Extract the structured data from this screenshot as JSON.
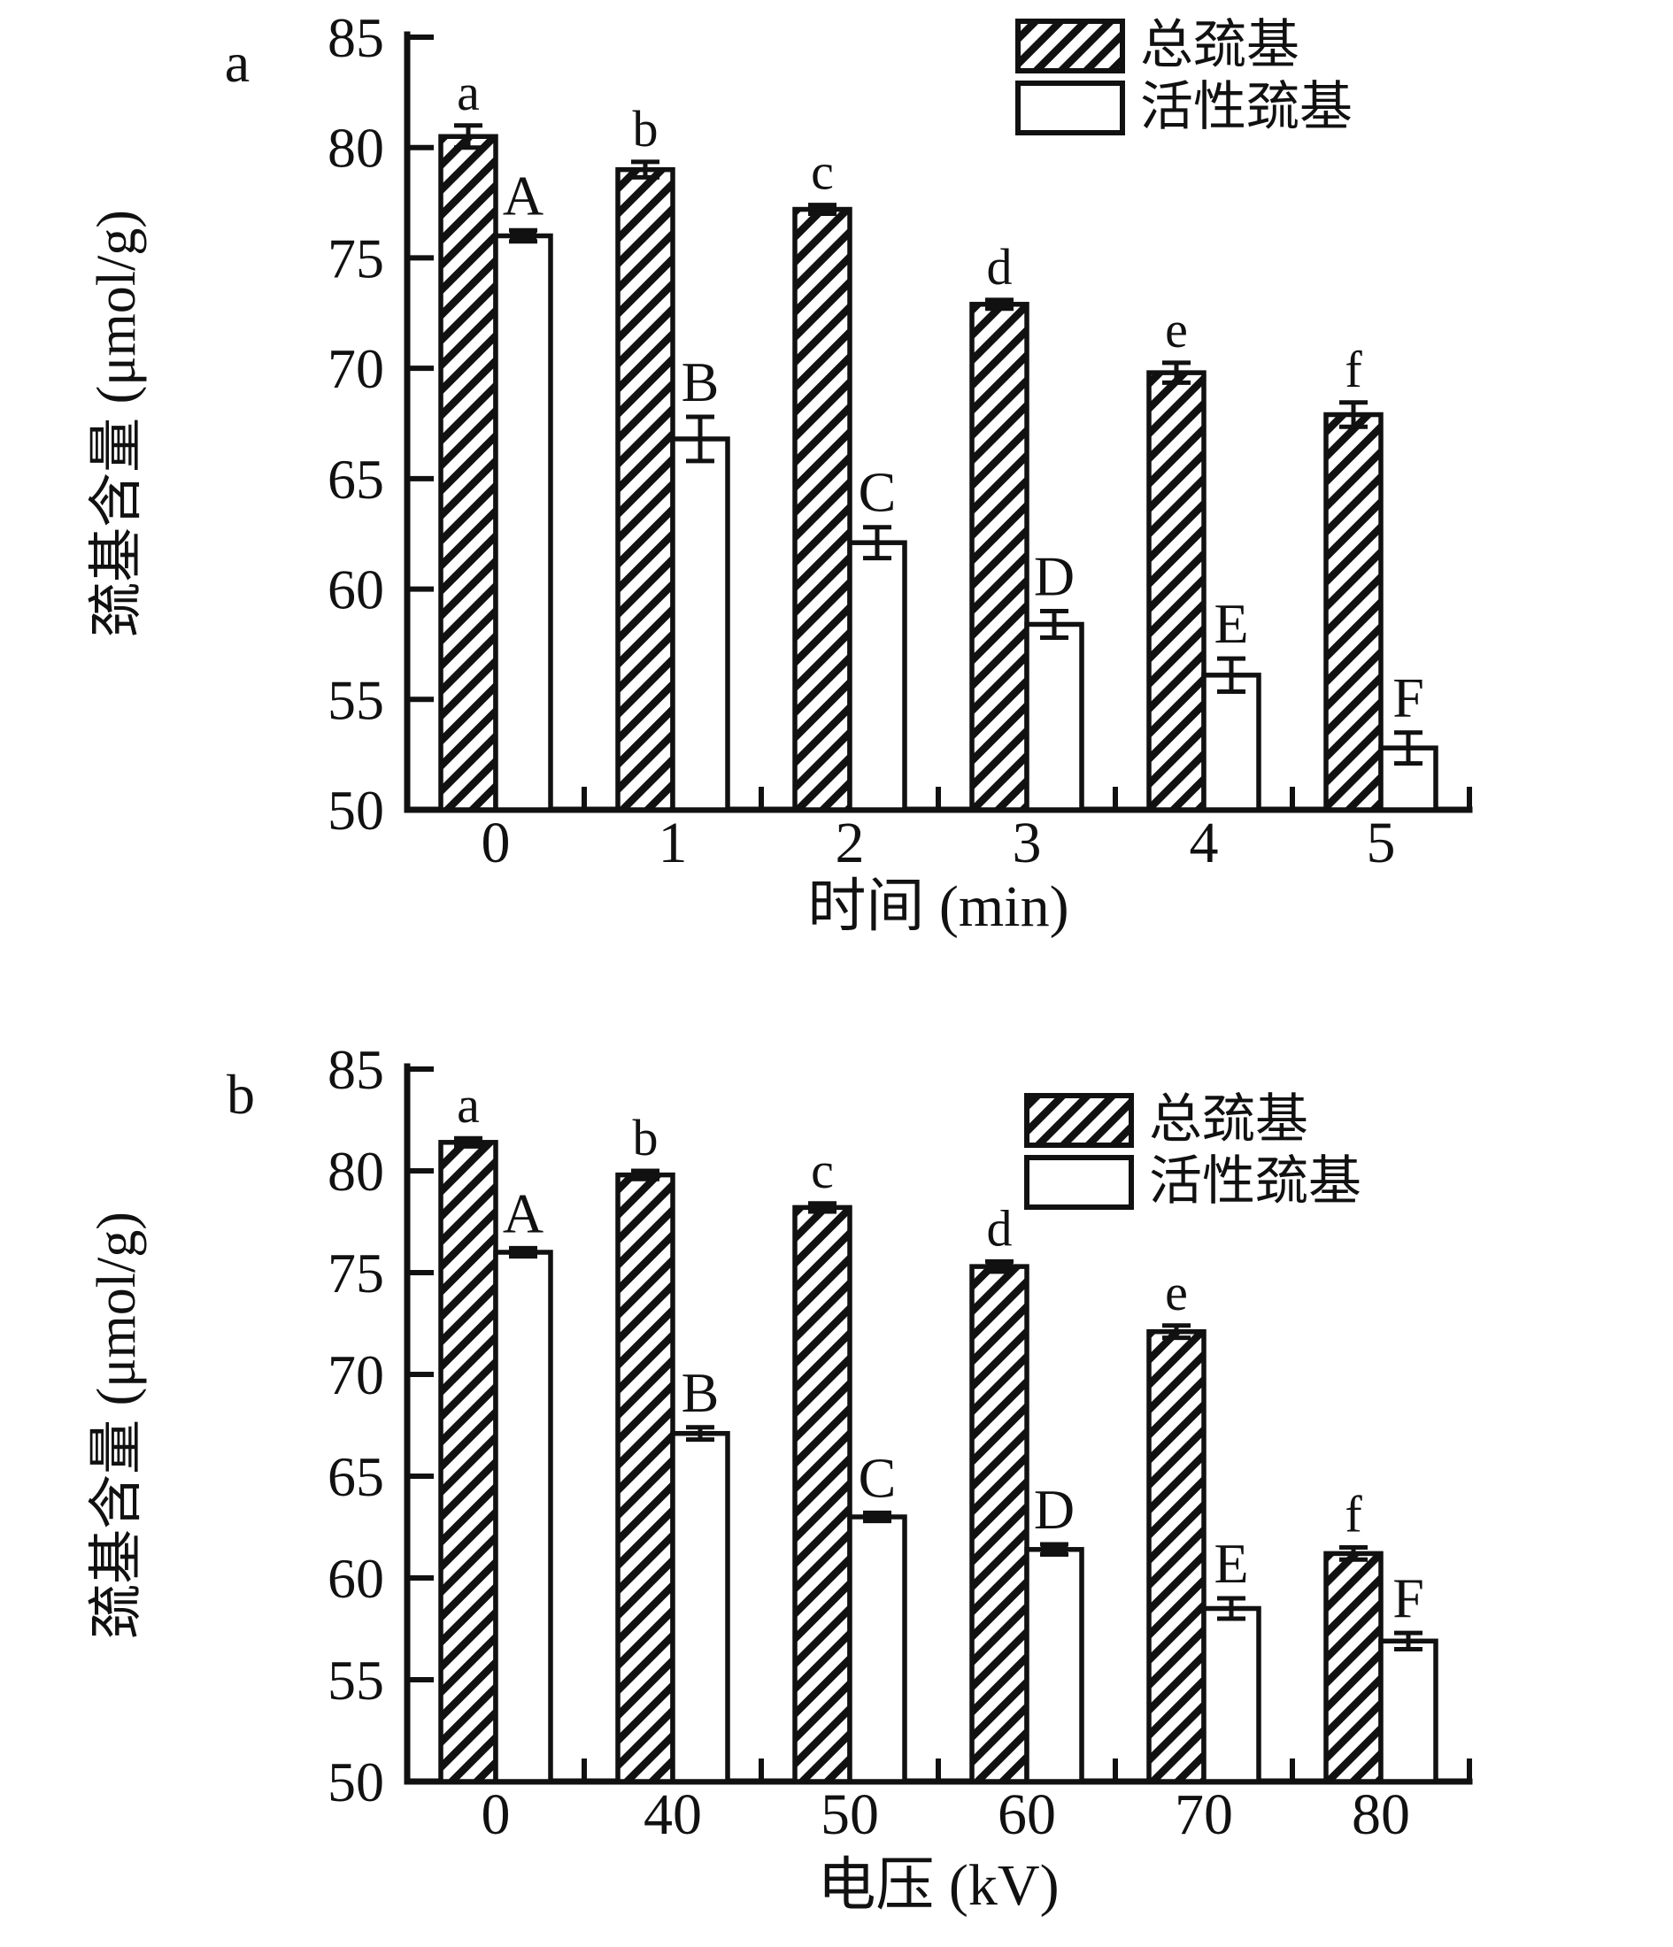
{
  "page": {
    "background": "#ffffff",
    "ink": "#111111"
  },
  "chart_data": [
    {
      "type": "bar",
      "panel_label": "a",
      "categories": [
        "0",
        "1",
        "2",
        "3",
        "4",
        "5"
      ],
      "series": [
        {
          "name": "总巯基",
          "fill": "hatched",
          "values": [
            80.5,
            79.0,
            77.2,
            72.9,
            69.8,
            67.9
          ],
          "errors": [
            0.5,
            0.35,
            0.2,
            0.2,
            0.45,
            0.55
          ],
          "letters": [
            "a",
            "b",
            "c",
            "d",
            "e",
            "f"
          ]
        },
        {
          "name": "活性巯基",
          "fill": "open",
          "values": [
            76.0,
            66.8,
            62.1,
            58.4,
            56.1,
            52.8
          ],
          "errors": [
            0.25,
            1.0,
            0.7,
            0.6,
            0.75,
            0.7
          ],
          "letters": [
            "A",
            "B",
            "C",
            "D",
            "E",
            "F"
          ]
        }
      ],
      "xlabel": "时间 (min)",
      "ylabel": "巯基含量 (μmol/g)",
      "ylim": [
        50,
        85
      ],
      "ytick_step": 5,
      "yticks": [
        "85",
        "80",
        "75",
        "70",
        "65",
        "60",
        "55",
        "50"
      ],
      "legend": [
        "总巯基",
        "活性巯基"
      ],
      "legend_position": "top-right",
      "grid": false
    },
    {
      "type": "bar",
      "panel_label": "b",
      "categories": [
        "0",
        "40",
        "50",
        "60",
        "70",
        "80"
      ],
      "series": [
        {
          "name": "总巯基",
          "fill": "hatched",
          "values": [
            81.4,
            79.8,
            78.2,
            75.3,
            72.1,
            61.2
          ],
          "errors": [
            0.2,
            0.2,
            0.2,
            0.25,
            0.3,
            0.3
          ],
          "letters": [
            "a",
            "b",
            "c",
            "d",
            "e",
            "f"
          ]
        },
        {
          "name": "活性巯基",
          "fill": "open",
          "values": [
            76.0,
            67.1,
            63.0,
            61.4,
            58.5,
            56.9
          ],
          "errors": [
            0.2,
            0.3,
            0.2,
            0.25,
            0.5,
            0.4
          ],
          "letters": [
            "A",
            "B",
            "C",
            "D",
            "E",
            "F"
          ]
        }
      ],
      "xlabel": "电压 (kV)",
      "ylabel": "巯基含量 (μmol/g)",
      "ylim": [
        50,
        85
      ],
      "ytick_step": 5,
      "yticks": [
        "85",
        "80",
        "75",
        "70",
        "65",
        "60",
        "55",
        "50"
      ],
      "legend": [
        "总巯基",
        "活性巯基"
      ],
      "legend_position": "top-right",
      "grid": false
    }
  ]
}
